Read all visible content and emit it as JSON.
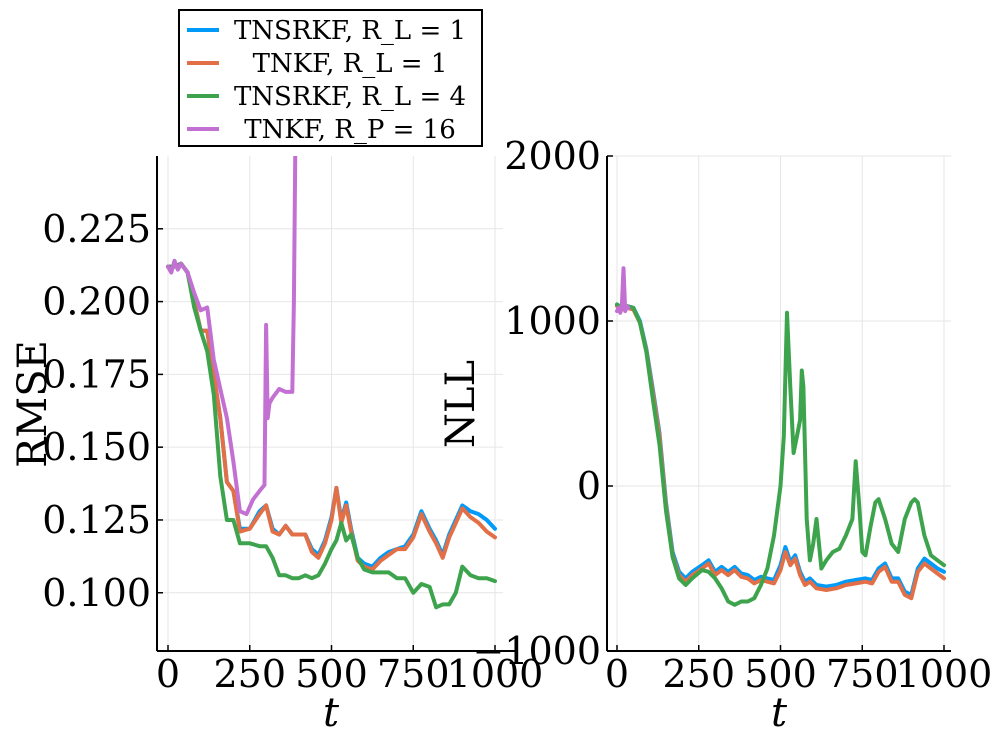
{
  "legend": {
    "entries": [
      {
        "label": "TNSRKF,  R_L = 1",
        "color": "#009af9"
      },
      {
        "label": "TNKF,  R_L = 1",
        "color": "#e26f46"
      },
      {
        "label": "TNSRKF,  R_L = 4",
        "color": "#3da44d"
      },
      {
        "label": "TNKF,  R_P = 16",
        "color": "#c271d2"
      }
    ]
  },
  "chart_data": [
    {
      "type": "line",
      "ylabel": "RMSE",
      "xlabel": "t",
      "xlim": [
        0,
        1000
      ],
      "ylim": [
        0.08,
        0.25
      ],
      "xticks": [
        0,
        250,
        500,
        750,
        1000
      ],
      "xtick_labels": [
        "0",
        "250",
        "500",
        "750",
        "1000"
      ],
      "yticks": [
        0.1,
        0.125,
        0.15,
        0.175,
        0.2,
        0.225
      ],
      "ytick_labels": [
        "0.100",
        "0.125",
        "0.150",
        "0.175",
        "0.200",
        "0.225"
      ],
      "grid": true,
      "series": [
        {
          "name": "TNSRKF,  R_L = 1",
          "color": "#009af9",
          "x": [
            0,
            20,
            40,
            60,
            80,
            100,
            120,
            140,
            160,
            180,
            200,
            220,
            250,
            280,
            300,
            320,
            340,
            360,
            380,
            400,
            420,
            440,
            460,
            480,
            500,
            515,
            530,
            545,
            560,
            580,
            600,
            625,
            650,
            675,
            700,
            725,
            750,
            775,
            800,
            820,
            840,
            860,
            880,
            900,
            925,
            950,
            975,
            1000
          ],
          "values": [
            0.212,
            0.212,
            0.213,
            0.21,
            0.2,
            0.19,
            0.19,
            0.175,
            0.16,
            0.138,
            0.135,
            0.122,
            0.122,
            0.128,
            0.13,
            0.122,
            0.12,
            0.123,
            0.12,
            0.12,
            0.12,
            0.115,
            0.113,
            0.118,
            0.126,
            0.136,
            0.125,
            0.131,
            0.122,
            0.112,
            0.11,
            0.109,
            0.112,
            0.114,
            0.115,
            0.116,
            0.12,
            0.128,
            0.122,
            0.118,
            0.113,
            0.12,
            0.125,
            0.13,
            0.128,
            0.127,
            0.125,
            0.122
          ]
        },
        {
          "name": "TNKF,  R_L = 1",
          "color": "#e26f46",
          "x": [
            0,
            20,
            40,
            60,
            80,
            100,
            120,
            140,
            160,
            180,
            200,
            220,
            250,
            280,
            300,
            320,
            340,
            360,
            380,
            400,
            420,
            440,
            460,
            480,
            500,
            515,
            530,
            545,
            560,
            580,
            600,
            625,
            650,
            675,
            700,
            725,
            750,
            775,
            800,
            820,
            840,
            860,
            880,
            900,
            925,
            950,
            975,
            1000
          ],
          "values": [
            0.212,
            0.212,
            0.213,
            0.21,
            0.2,
            0.19,
            0.19,
            0.175,
            0.16,
            0.138,
            0.135,
            0.121,
            0.122,
            0.127,
            0.13,
            0.121,
            0.12,
            0.123,
            0.12,
            0.12,
            0.12,
            0.114,
            0.112,
            0.117,
            0.125,
            0.136,
            0.124,
            0.13,
            0.121,
            0.111,
            0.109,
            0.108,
            0.111,
            0.113,
            0.115,
            0.115,
            0.119,
            0.127,
            0.121,
            0.117,
            0.112,
            0.119,
            0.124,
            0.129,
            0.126,
            0.124,
            0.121,
            0.119
          ]
        },
        {
          "name": "TNSRKF,  R_L = 4",
          "color": "#3da44d",
          "x": [
            0,
            20,
            40,
            60,
            80,
            100,
            120,
            140,
            160,
            180,
            200,
            220,
            250,
            280,
            300,
            320,
            340,
            360,
            380,
            400,
            420,
            440,
            460,
            480,
            500,
            515,
            530,
            545,
            560,
            580,
            600,
            625,
            650,
            675,
            700,
            725,
            750,
            775,
            800,
            820,
            840,
            860,
            880,
            900,
            925,
            950,
            975,
            1000
          ],
          "values": [
            0.212,
            0.212,
            0.213,
            0.21,
            0.198,
            0.19,
            0.183,
            0.168,
            0.14,
            0.125,
            0.125,
            0.117,
            0.117,
            0.116,
            0.116,
            0.112,
            0.106,
            0.106,
            0.105,
            0.105,
            0.106,
            0.105,
            0.106,
            0.11,
            0.115,
            0.118,
            0.124,
            0.118,
            0.12,
            0.112,
            0.108,
            0.107,
            0.107,
            0.107,
            0.105,
            0.105,
            0.1,
            0.103,
            0.102,
            0.095,
            0.096,
            0.096,
            0.1,
            0.109,
            0.106,
            0.105,
            0.105,
            0.104
          ]
        },
        {
          "name": "TNKF,  R_P = 16",
          "color": "#c271d2",
          "x": [
            0,
            10,
            20,
            30,
            40,
            60,
            80,
            100,
            120,
            140,
            160,
            180,
            200,
            220,
            240,
            260,
            280,
            295,
            300,
            305,
            310,
            320,
            340,
            360,
            370,
            380,
            385,
            390
          ],
          "values": [
            0.212,
            0.21,
            0.214,
            0.211,
            0.213,
            0.21,
            0.203,
            0.197,
            0.198,
            0.18,
            0.17,
            0.16,
            0.145,
            0.128,
            0.127,
            0.132,
            0.135,
            0.137,
            0.192,
            0.16,
            0.165,
            0.167,
            0.17,
            0.169,
            0.169,
            0.169,
            0.2,
            0.26
          ]
        }
      ]
    },
    {
      "type": "line",
      "ylabel": "NLL",
      "xlabel": "t",
      "xlim": [
        0,
        1000
      ],
      "ylim": [
        -1000,
        2000
      ],
      "xticks": [
        0,
        250,
        500,
        750,
        1000
      ],
      "xtick_labels": [
        "0",
        "250",
        "500",
        "750",
        "1000"
      ],
      "yticks": [
        -1000,
        0,
        1000,
        2000
      ],
      "ytick_labels": [
        "−1000",
        "0",
        "1000",
        "2000"
      ],
      "grid": true,
      "series": [
        {
          "name": "TNSRKF,  R_L = 1",
          "color": "#009af9",
          "x": [
            0,
            15,
            30,
            50,
            70,
            90,
            110,
            130,
            150,
            170,
            190,
            210,
            230,
            260,
            280,
            300,
            320,
            340,
            360,
            380,
            400,
            420,
            440,
            460,
            480,
            500,
            515,
            530,
            545,
            560,
            575,
            590,
            610,
            640,
            670,
            700,
            730,
            760,
            780,
            800,
            820,
            840,
            860,
            880,
            900,
            920,
            940,
            960,
            980,
            1000
          ],
          "values": [
            1100,
            1080,
            1090,
            1080,
            1000,
            830,
            580,
            320,
            -100,
            -400,
            -520,
            -560,
            -520,
            -480,
            -450,
            -520,
            -490,
            -520,
            -490,
            -530,
            -540,
            -570,
            -550,
            -560,
            -570,
            -480,
            -370,
            -460,
            -420,
            -520,
            -580,
            -560,
            -600,
            -610,
            -600,
            -580,
            -570,
            -560,
            -570,
            -500,
            -470,
            -560,
            -560,
            -640,
            -660,
            -500,
            -440,
            -470,
            -500,
            -520
          ]
        },
        {
          "name": "TNKF,  R_L = 1",
          "color": "#e26f46",
          "x": [
            0,
            15,
            30,
            50,
            70,
            90,
            110,
            130,
            150,
            170,
            190,
            210,
            230,
            260,
            280,
            300,
            320,
            340,
            360,
            380,
            400,
            420,
            440,
            460,
            480,
            500,
            515,
            530,
            545,
            560,
            575,
            590,
            610,
            640,
            670,
            700,
            730,
            760,
            780,
            800,
            820,
            840,
            860,
            880,
            900,
            920,
            940,
            960,
            980,
            1000
          ],
          "values": [
            1090,
            1070,
            1080,
            1070,
            990,
            820,
            560,
            300,
            -120,
            -420,
            -540,
            -580,
            -540,
            -500,
            -470,
            -540,
            -510,
            -540,
            -510,
            -550,
            -560,
            -590,
            -570,
            -580,
            -590,
            -510,
            -400,
            -480,
            -440,
            -540,
            -600,
            -580,
            -620,
            -630,
            -620,
            -600,
            -590,
            -580,
            -590,
            -520,
            -490,
            -580,
            -580,
            -660,
            -680,
            -520,
            -470,
            -500,
            -530,
            -560
          ]
        },
        {
          "name": "TNSRKF,  R_L = 4",
          "color": "#3da44d",
          "x": [
            0,
            15,
            30,
            50,
            70,
            90,
            110,
            130,
            150,
            170,
            190,
            210,
            230,
            260,
            280,
            300,
            320,
            340,
            360,
            380,
            400,
            420,
            440,
            460,
            480,
            500,
            510,
            520,
            530,
            540,
            550,
            560,
            565,
            570,
            580,
            590,
            600,
            610,
            625,
            640,
            660,
            680,
            700,
            720,
            730,
            740,
            750,
            760,
            775,
            790,
            800,
            820,
            840,
            860,
            880,
            900,
            910,
            920,
            940,
            960,
            980,
            1000
          ],
          "values": [
            1100,
            1080,
            1090,
            1080,
            990,
            810,
            520,
            250,
            -150,
            -430,
            -560,
            -600,
            -560,
            -510,
            -520,
            -560,
            -620,
            -700,
            -720,
            -700,
            -700,
            -680,
            -600,
            -500,
            -300,
            0,
            300,
            1050,
            600,
            200,
            300,
            400,
            700,
            600,
            -200,
            -450,
            -350,
            -200,
            -500,
            -450,
            -400,
            -380,
            -300,
            -200,
            150,
            -100,
            -400,
            -420,
            -250,
            -100,
            -80,
            -200,
            -350,
            -400,
            -200,
            -100,
            -80,
            -100,
            -300,
            -420,
            -450,
            -480
          ]
        },
        {
          "name": "TNKF,  R_P = 16",
          "color": "#c271d2",
          "x": [
            0,
            5,
            10,
            15,
            20,
            25,
            30,
            35
          ],
          "values": [
            1060,
            1080,
            1050,
            1100,
            1320,
            1060,
            1090,
            1080
          ]
        }
      ]
    }
  ]
}
